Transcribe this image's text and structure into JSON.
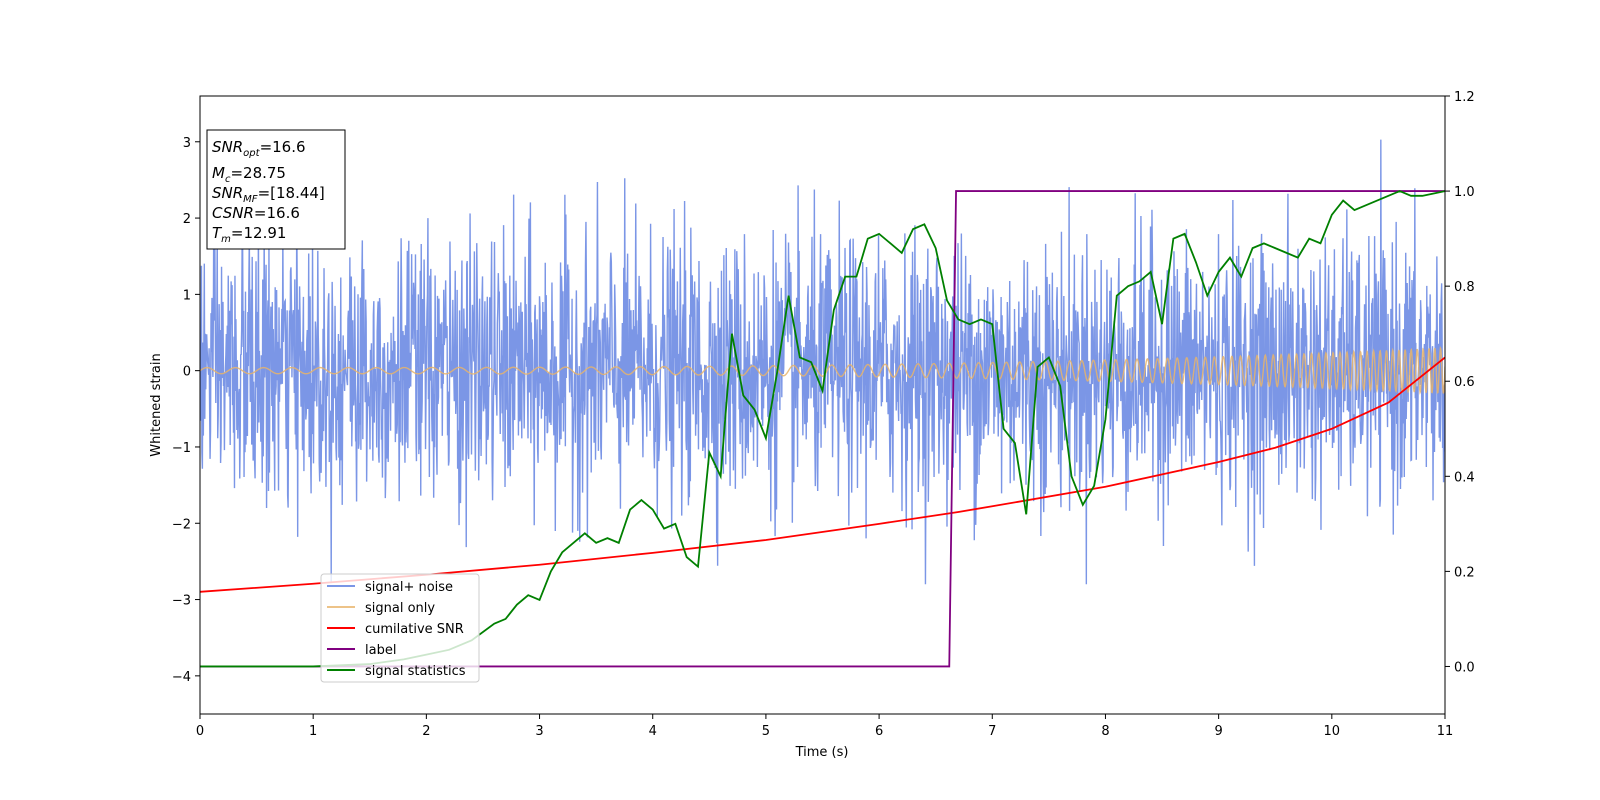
{
  "chart_data": {
    "type": "line",
    "title": "",
    "xlabel": "Time (s)",
    "ylabel": "Whitened strain",
    "xlim": [
      0,
      11
    ],
    "ylim": [
      -4.5,
      3.6
    ],
    "y2lim": [
      -0.1,
      1.2
    ],
    "xticks": [
      "0",
      "1",
      "2",
      "3",
      "4",
      "5",
      "6",
      "7",
      "8",
      "9",
      "10",
      "11"
    ],
    "yticks": [
      "−4",
      "−3",
      "−2",
      "−1",
      "0",
      "1",
      "2",
      "3"
    ],
    "y2ticks": [
      "0.0",
      "0.2",
      "0.4",
      "0.6",
      "0.8",
      "1.0",
      "1.2"
    ],
    "grid": false,
    "legend_position": "bottom-left",
    "colors": {
      "signal_noise": "#7b96e6",
      "signal_only": "#e8b46a",
      "cumulative_snr": "#ff0000",
      "label": "#800080",
      "signal_statistics": "#008000"
    },
    "series": [
      {
        "name": "signal+ noise",
        "axis": "left",
        "description_values": "noise band approx -2.7 to 3.2 with occasional spikes",
        "noise_range": [
          -2.8,
          3.25
        ]
      },
      {
        "name": "signal only",
        "axis": "left",
        "amplitude_start": 0.04,
        "amplitude_end": 0.3,
        "cycles_per_second_start": 4,
        "cycles_per_second_end": 20
      },
      {
        "name": "cumilative SNR",
        "axis": "right",
        "x": [
          0,
          1,
          2,
          3,
          4,
          5,
          6,
          6.7,
          7,
          8,
          9,
          9.5,
          10,
          10.5,
          11
        ],
        "y": [
          0.157,
          0.174,
          0.193,
          0.214,
          0.239,
          0.266,
          0.3,
          0.325,
          0.337,
          0.378,
          0.43,
          0.46,
          0.5,
          0.555,
          0.65
        ]
      },
      {
        "name": "label",
        "axis": "right",
        "x": [
          0,
          6.62,
          6.68,
          11
        ],
        "y": [
          0.0,
          0.0,
          1.0,
          1.0
        ]
      },
      {
        "name": "signal statistics",
        "axis": "right",
        "x": [
          0,
          0.5,
          1,
          1.5,
          1.8,
          2.0,
          2.2,
          2.4,
          2.6,
          2.7,
          2.8,
          2.9,
          3.0,
          3.1,
          3.2,
          3.3,
          3.4,
          3.5,
          3.6,
          3.7,
          3.8,
          3.9,
          4.0,
          4.1,
          4.2,
          4.3,
          4.4,
          4.5,
          4.6,
          4.7,
          4.8,
          4.9,
          5.0,
          5.1,
          5.2,
          5.3,
          5.4,
          5.5,
          5.6,
          5.7,
          5.8,
          5.9,
          6.0,
          6.1,
          6.2,
          6.3,
          6.4,
          6.5,
          6.6,
          6.7,
          6.8,
          6.9,
          7.0,
          7.1,
          7.2,
          7.3,
          7.4,
          7.5,
          7.6,
          7.7,
          7.8,
          7.9,
          8.0,
          8.1,
          8.2,
          8.3,
          8.4,
          8.5,
          8.6,
          8.7,
          8.8,
          8.9,
          9.0,
          9.1,
          9.2,
          9.3,
          9.4,
          9.5,
          9.6,
          9.7,
          9.8,
          9.9,
          10.0,
          10.1,
          10.2,
          10.3,
          10.4,
          10.5,
          10.6,
          10.7,
          10.8,
          10.9,
          11.0
        ],
        "y": [
          0.0,
          0.0,
          0.0,
          0.005,
          0.015,
          0.025,
          0.035,
          0.055,
          0.09,
          0.1,
          0.13,
          0.15,
          0.14,
          0.2,
          0.24,
          0.26,
          0.28,
          0.26,
          0.27,
          0.26,
          0.33,
          0.35,
          0.33,
          0.29,
          0.3,
          0.23,
          0.21,
          0.45,
          0.4,
          0.7,
          0.57,
          0.54,
          0.48,
          0.62,
          0.78,
          0.65,
          0.64,
          0.58,
          0.75,
          0.82,
          0.82,
          0.9,
          0.91,
          0.89,
          0.87,
          0.92,
          0.93,
          0.88,
          0.77,
          0.73,
          0.72,
          0.73,
          0.72,
          0.5,
          0.47,
          0.32,
          0.63,
          0.65,
          0.59,
          0.4,
          0.34,
          0.38,
          0.52,
          0.78,
          0.8,
          0.81,
          0.83,
          0.72,
          0.9,
          0.91,
          0.85,
          0.78,
          0.83,
          0.86,
          0.82,
          0.88,
          0.89,
          0.88,
          0.87,
          0.86,
          0.9,
          0.89,
          0.95,
          0.98,
          0.96,
          0.97,
          0.98,
          0.99,
          1.0,
          0.99,
          0.99,
          0.995,
          1.0
        ]
      }
    ]
  },
  "stats_box": {
    "line1_main": "SNR",
    "line1_sub": "opt",
    "line1_value": "=16.6",
    "line2_main": "M",
    "line2_sub": "c",
    "line2_value": "=28.75",
    "line3_main": "SNR",
    "line3_sub": "MF",
    "line3_value": "=[18.44]",
    "line4_main": "CSNR",
    "line4_value": "=16.6",
    "line5_main": "T",
    "line5_sub": "m",
    "line5_value": "=12.91"
  },
  "legend": {
    "items": [
      "signal+ noise",
      "signal only",
      "cumilative SNR",
      "label",
      "signal statistics"
    ]
  }
}
